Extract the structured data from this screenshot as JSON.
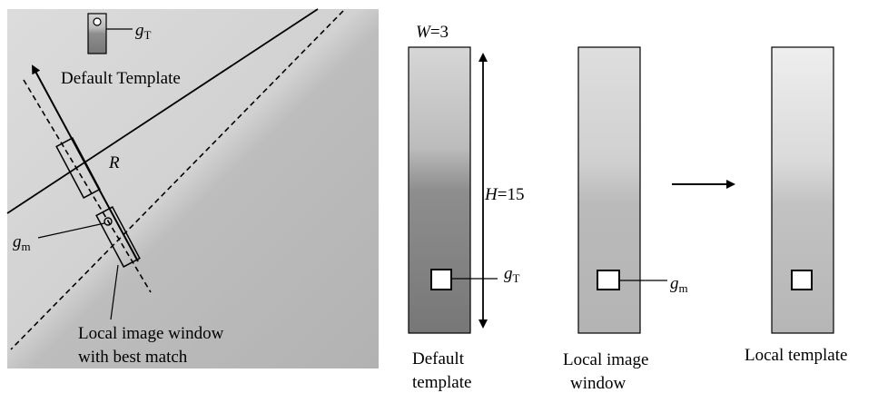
{
  "left_panel": {
    "template_label": {
      "base": "g",
      "sub": "T"
    },
    "template_caption": "Default Template",
    "range_label": "R",
    "match_label": {
      "base": "g",
      "sub": "m"
    },
    "window_caption": [
      "Local image window",
      "with best match"
    ]
  },
  "dimensions": {
    "width": {
      "symbol": "W",
      "rest": "=3"
    },
    "height": {
      "symbol": "H",
      "rest": "=15"
    }
  },
  "strips": [
    {
      "caption": [
        "Default",
        "template"
      ],
      "point_label": {
        "base": "g",
        "sub": "T"
      }
    },
    {
      "caption": [
        "Local image",
        "window"
      ],
      "point_label": {
        "base": "g",
        "sub": "m"
      }
    },
    {
      "caption": [
        "Local template"
      ]
    }
  ]
}
